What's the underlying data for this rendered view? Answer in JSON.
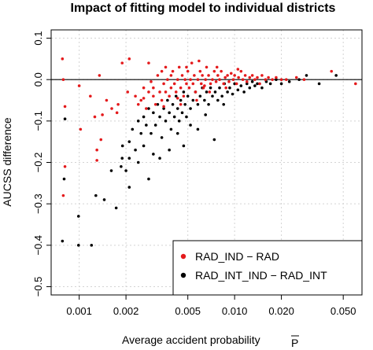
{
  "chart_data": {
    "type": "scatter",
    "title": "Impact of fitting model to individual districts",
    "xlabel": "Average accident probability",
    "xlabel_symbol": "P",
    "ylabel": "AUCSS difference",
    "x_scale": "log",
    "xlim": [
      0.00066,
      0.066
    ],
    "ylim": [
      -0.52,
      0.12
    ],
    "x_ticks": [
      0.001,
      0.002,
      0.005,
      0.01,
      0.02,
      0.05
    ],
    "x_tick_labels": [
      "0.001",
      "0.002",
      "0.005",
      "0.010",
      "0.020",
      "0.050"
    ],
    "y_ticks": [
      0.1,
      0.0,
      -0.1,
      -0.2,
      -0.3,
      -0.4,
      -0.5
    ],
    "y_tick_labels": [
      "0.1",
      "0.0",
      "−0.1",
      "−0.2",
      "−0.3",
      "−0.4",
      "−0.5"
    ],
    "grid": true,
    "reference_line_y": 0,
    "legend_position": "bottom-right",
    "series": [
      {
        "name": "RAD_IND − RAD",
        "color": "#e41a1c",
        "points": [
          [
            0.00078,
            0.05
          ],
          [
            0.00079,
            0.0
          ],
          [
            0.00081,
            -0.065
          ],
          [
            0.00079,
            -0.28
          ],
          [
            0.00081,
            -0.21
          ],
          [
            0.001,
            -0.015
          ],
          [
            0.00102,
            -0.12
          ],
          [
            0.00118,
            -0.04
          ],
          [
            0.00126,
            -0.09
          ],
          [
            0.0013,
            -0.17
          ],
          [
            0.0013,
            -0.195
          ],
          [
            0.00135,
            0.01
          ],
          [
            0.00138,
            -0.145
          ],
          [
            0.00141,
            -0.085
          ],
          [
            0.0015,
            -0.05
          ],
          [
            0.00162,
            -0.07
          ],
          [
            0.00175,
            -0.08
          ],
          [
            0.00178,
            -0.06
          ],
          [
            0.00189,
            0.04
          ],
          [
            0.00205,
            -0.03
          ],
          [
            0.0021,
            0.05
          ],
          [
            0.0023,
            -0.04
          ],
          [
            0.0024,
            -0.06
          ],
          [
            0.0025,
            -0.05
          ],
          [
            0.0026,
            -0.02
          ],
          [
            0.0026,
            -0.045
          ],
          [
            0.0027,
            -0.07
          ],
          [
            0.0028,
            -0.03
          ],
          [
            0.0028,
            0.04
          ],
          [
            0.003,
            -0.02
          ],
          [
            0.003,
            -0.04
          ],
          [
            0.0031,
            -0.06
          ],
          [
            0.0032,
            0.01
          ],
          [
            0.0033,
            -0.03
          ],
          [
            0.0034,
            0.02
          ],
          [
            0.0034,
            -0.05
          ],
          [
            0.0035,
            -0.01
          ],
          [
            0.0036,
            -0.03
          ],
          [
            0.0037,
            0.0
          ],
          [
            0.0038,
            -0.04
          ],
          [
            0.0039,
            -0.02
          ],
          [
            0.004,
            0.02
          ],
          [
            0.0041,
            -0.01
          ],
          [
            0.0042,
            -0.03
          ],
          [
            0.0043,
            0.0
          ],
          [
            0.0044,
            0.03
          ],
          [
            0.0045,
            -0.02
          ],
          [
            0.0046,
            0.01
          ],
          [
            0.0047,
            -0.04
          ],
          [
            0.0048,
            0.0
          ],
          [
            0.0049,
            -0.01
          ],
          [
            0.005,
            0.02
          ],
          [
            0.0051,
            -0.02
          ],
          [
            0.0052,
            0.0
          ],
          [
            0.0053,
            0.04
          ],
          [
            0.0054,
            -0.01
          ],
          [
            0.0055,
            0.01
          ],
          [
            0.0056,
            -0.03
          ],
          [
            0.0058,
            0.0
          ],
          [
            0.006,
            0.02
          ],
          [
            0.0061,
            -0.01
          ],
          [
            0.0062,
            0.01
          ],
          [
            0.0063,
            -0.02
          ],
          [
            0.0065,
            0.0
          ],
          [
            0.0066,
            0.03
          ],
          [
            0.0068,
            0.01
          ],
          [
            0.007,
            -0.01
          ],
          [
            0.0072,
            0.0
          ],
          [
            0.0074,
            0.02
          ],
          [
            0.0076,
            -0.005
          ],
          [
            0.0078,
            0.01
          ],
          [
            0.008,
            0.0
          ],
          [
            0.0082,
            0.02
          ],
          [
            0.0085,
            -0.01
          ],
          [
            0.0087,
            0.005
          ],
          [
            0.009,
            0.01
          ],
          [
            0.0092,
            -0.005
          ],
          [
            0.0095,
            0.015
          ],
          [
            0.0098,
            0.0
          ],
          [
            0.01,
            0.01
          ],
          [
            0.0103,
            -0.01
          ],
          [
            0.0106,
            0.005
          ],
          [
            0.011,
            0.02
          ],
          [
            0.0113,
            0.0
          ],
          [
            0.0117,
            0.01
          ],
          [
            0.012,
            -0.005
          ],
          [
            0.0125,
            0.005
          ],
          [
            0.013,
            0.01
          ],
          [
            0.0135,
            0.0
          ],
          [
            0.014,
            0.005
          ],
          [
            0.0145,
            -0.01
          ],
          [
            0.015,
            0.01
          ],
          [
            0.0158,
            0.0
          ],
          [
            0.0165,
            0.005
          ],
          [
            0.0175,
            0.0
          ],
          [
            0.0185,
            0.005
          ],
          [
            0.02,
            0.0
          ],
          [
            0.0215,
            0.0
          ],
          [
            0.025,
            0.005
          ],
          [
            0.028,
            0.0
          ],
          [
            0.042,
            0.02
          ],
          [
            0.06,
            -0.01
          ],
          [
            0.0045,
            -0.06
          ],
          [
            0.0057,
            -0.05
          ],
          [
            0.0059,
            0.045
          ],
          [
            0.0039,
            0.01
          ],
          [
            0.0043,
            -0.045
          ],
          [
            0.0036,
            0.03
          ],
          [
            0.0069,
            -0.03
          ],
          [
            0.0077,
            0.03
          ],
          [
            0.0088,
            -0.02
          ],
          [
            0.0105,
            0.025
          ],
          [
            0.0035,
            -0.065
          ],
          [
            0.0029,
            -0.005
          ],
          [
            0.0049,
            0.03
          ],
          [
            0.0064,
            -0.015
          ]
        ]
      },
      {
        "name": "RAD_INT_IND − RAD_INT",
        "color": "#000000",
        "points": [
          [
            0.00078,
            -0.39
          ],
          [
            0.0008,
            -0.24
          ],
          [
            0.00081,
            -0.095
          ],
          [
            0.00099,
            -0.4
          ],
          [
            0.00099,
            -0.33
          ],
          [
            0.0012,
            -0.4
          ],
          [
            0.00128,
            -0.28
          ],
          [
            0.00145,
            -0.29
          ],
          [
            0.00161,
            -0.22
          ],
          [
            0.00173,
            -0.31
          ],
          [
            0.00186,
            -0.21
          ],
          [
            0.00189,
            -0.19
          ],
          [
            0.0019,
            -0.16
          ],
          [
            0.002,
            -0.22
          ],
          [
            0.0021,
            -0.15
          ],
          [
            0.0021,
            -0.26
          ],
          [
            0.0022,
            -0.12
          ],
          [
            0.0023,
            -0.17
          ],
          [
            0.0024,
            -0.1
          ],
          [
            0.0025,
            -0.13
          ],
          [
            0.0026,
            -0.16
          ],
          [
            0.0026,
            -0.09
          ],
          [
            0.0027,
            -0.11
          ],
          [
            0.0028,
            -0.07
          ],
          [
            0.0029,
            -0.13
          ],
          [
            0.003,
            -0.08
          ],
          [
            0.003,
            -0.18
          ],
          [
            0.0031,
            -0.11
          ],
          [
            0.0032,
            -0.06
          ],
          [
            0.0033,
            -0.09
          ],
          [
            0.0034,
            -0.14
          ],
          [
            0.0035,
            -0.07
          ],
          [
            0.0036,
            -0.1
          ],
          [
            0.0037,
            -0.05
          ],
          [
            0.0038,
            -0.08
          ],
          [
            0.0039,
            -0.12
          ],
          [
            0.004,
            -0.06
          ],
          [
            0.0041,
            -0.09
          ],
          [
            0.0042,
            -0.04
          ],
          [
            0.0043,
            -0.07
          ],
          [
            0.0044,
            -0.1
          ],
          [
            0.0045,
            -0.05
          ],
          [
            0.0046,
            -0.08
          ],
          [
            0.0047,
            -0.03
          ],
          [
            0.0048,
            -0.06
          ],
          [
            0.0049,
            -0.09
          ],
          [
            0.005,
            -0.04
          ],
          [
            0.0052,
            -0.07
          ],
          [
            0.0054,
            -0.05
          ],
          [
            0.0056,
            -0.03
          ],
          [
            0.0058,
            -0.06
          ],
          [
            0.006,
            -0.04
          ],
          [
            0.0062,
            -0.02
          ],
          [
            0.0064,
            -0.05
          ],
          [
            0.0066,
            -0.03
          ],
          [
            0.0068,
            -0.06
          ],
          [
            0.007,
            -0.02
          ],
          [
            0.0072,
            -0.04
          ],
          [
            0.0075,
            -0.03
          ],
          [
            0.0078,
            -0.05
          ],
          [
            0.008,
            -0.02
          ],
          [
            0.0083,
            -0.04
          ],
          [
            0.0086,
            -0.01
          ],
          [
            0.009,
            -0.03
          ],
          [
            0.0093,
            -0.02
          ],
          [
            0.0097,
            -0.035
          ],
          [
            0.01,
            -0.01
          ],
          [
            0.0105,
            -0.025
          ],
          [
            0.011,
            -0.015
          ],
          [
            0.0115,
            -0.03
          ],
          [
            0.012,
            -0.01
          ],
          [
            0.0125,
            -0.02
          ],
          [
            0.013,
            -0.005
          ],
          [
            0.0135,
            -0.015
          ],
          [
            0.014,
            -0.01
          ],
          [
            0.015,
            -0.02
          ],
          [
            0.016,
            -0.005
          ],
          [
            0.017,
            -0.01
          ],
          [
            0.0185,
            0.0
          ],
          [
            0.02,
            -0.01
          ],
          [
            0.0225,
            -0.005
          ],
          [
            0.026,
            0.0
          ],
          [
            0.029,
            0.01
          ],
          [
            0.035,
            -0.01
          ],
          [
            0.045,
            0.01
          ],
          [
            0.0038,
            -0.17
          ],
          [
            0.0043,
            -0.13
          ],
          [
            0.0052,
            -0.11
          ],
          [
            0.0065,
            -0.085
          ],
          [
            0.0074,
            -0.145
          ],
          [
            0.0085,
            -0.06
          ],
          [
            0.0024,
            -0.2
          ],
          [
            0.0028,
            -0.24
          ],
          [
            0.0033,
            -0.19
          ],
          [
            0.0021,
            -0.19
          ],
          [
            0.0058,
            -0.12
          ],
          [
            0.0047,
            -0.16
          ]
        ]
      }
    ]
  }
}
